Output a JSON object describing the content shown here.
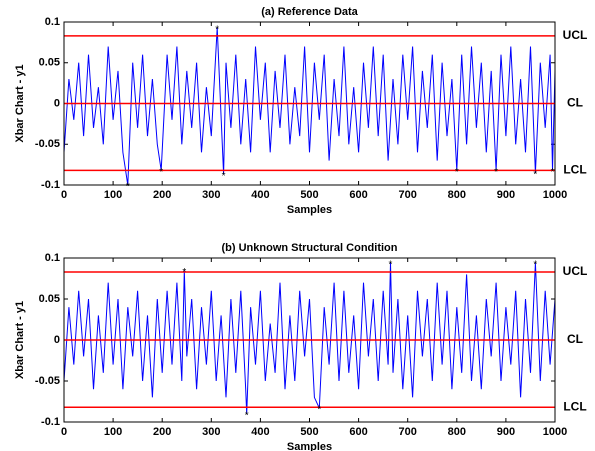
{
  "chart_data": [
    {
      "type": "line",
      "title": "(a) Reference Data",
      "xlabel": "Samples",
      "ylabel": "Xbar Chart - y1",
      "xlim": [
        0,
        1000
      ],
      "xticks": [
        0,
        100,
        200,
        300,
        400,
        500,
        600,
        700,
        800,
        900,
        1000
      ],
      "ylim": [
        -0.1,
        0.1
      ],
      "yticks": [
        -0.1,
        -0.05,
        0,
        0.05,
        0.1
      ],
      "x": [
        0,
        10,
        20,
        30,
        40,
        50,
        60,
        70,
        80,
        90,
        100,
        110,
        120,
        130,
        140,
        150,
        160,
        170,
        180,
        190,
        198,
        210,
        220,
        230,
        240,
        250,
        260,
        270,
        280,
        290,
        300,
        312,
        325,
        330,
        340,
        350,
        360,
        370,
        380,
        390,
        400,
        410,
        420,
        430,
        440,
        450,
        460,
        470,
        480,
        490,
        500,
        510,
        520,
        530,
        540,
        550,
        560,
        570,
        580,
        590,
        600,
        610,
        620,
        630,
        640,
        650,
        660,
        670,
        680,
        690,
        700,
        710,
        720,
        730,
        740,
        750,
        760,
        770,
        780,
        790,
        800,
        810,
        820,
        830,
        840,
        850,
        860,
        870,
        880,
        890,
        900,
        910,
        920,
        930,
        940,
        950,
        960,
        970,
        980,
        990,
        995,
        1000
      ],
      "series": [
        {
          "color": "#0000ff",
          "values": [
            -0.06,
            0.03,
            -0.02,
            0.05,
            -0.04,
            0.06,
            -0.03,
            0.02,
            -0.05,
            0.07,
            -0.02,
            0.04,
            -0.06,
            -0.1,
            0.05,
            -0.03,
            0.06,
            -0.04,
            0.03,
            -0.05,
            -0.082,
            0.06,
            -0.02,
            0.07,
            -0.05,
            0.04,
            -0.03,
            0.05,
            -0.06,
            0.02,
            -0.04,
            0.093,
            -0.087,
            0.05,
            -0.03,
            0.06,
            -0.05,
            0.03,
            -0.06,
            0.07,
            -0.02,
            0.05,
            -0.06,
            0.04,
            -0.03,
            0.06,
            -0.05,
            0.02,
            -0.04,
            0.07,
            -0.06,
            0.05,
            -0.02,
            0.06,
            -0.07,
            0.03,
            -0.04,
            0.07,
            -0.05,
            0.02,
            -0.06,
            0.05,
            -0.03,
            0.07,
            -0.04,
            0.06,
            -0.07,
            0.03,
            -0.05,
            0.06,
            -0.02,
            0.07,
            -0.06,
            0.04,
            -0.03,
            0.06,
            -0.07,
            0.05,
            -0.04,
            0.03,
            -0.082,
            0.06,
            -0.05,
            0.07,
            -0.03,
            0.05,
            -0.06,
            0.04,
            -0.082,
            0.06,
            -0.04,
            0.07,
            -0.05,
            0.03,
            -0.06,
            0.07,
            -0.085,
            0.05,
            -0.03,
            0.06,
            -0.082,
            0.04
          ]
        }
      ],
      "markers": {
        "color": "#000000",
        "x": [
          130,
          198,
          312,
          325,
          800,
          880,
          960,
          995
        ],
        "y": [
          -0.1,
          -0.082,
          0.093,
          -0.087,
          -0.082,
          -0.082,
          -0.085,
          -0.082
        ]
      },
      "control_limits": [
        {
          "label": "UCL",
          "value": 0.083,
          "color": "#ff0000"
        },
        {
          "label": "CL",
          "value": 0,
          "color": "#ff0000"
        },
        {
          "label": "LCL",
          "value": -0.082,
          "color": "#ff0000"
        }
      ]
    },
    {
      "type": "line",
      "title": "(b) Unknown Structural Condition",
      "xlabel": "Samples",
      "ylabel": "Xbar Chart - y1",
      "xlim": [
        0,
        1000
      ],
      "xticks": [
        0,
        100,
        200,
        300,
        400,
        500,
        600,
        700,
        800,
        900,
        1000
      ],
      "ylim": [
        -0.1,
        0.1
      ],
      "yticks": [
        -0.1,
        -0.05,
        0,
        0.05,
        0.1
      ],
      "x": [
        0,
        10,
        20,
        30,
        40,
        50,
        60,
        70,
        80,
        90,
        100,
        110,
        120,
        130,
        140,
        150,
        160,
        170,
        180,
        190,
        200,
        210,
        220,
        230,
        240,
        245,
        250,
        260,
        270,
        280,
        290,
        300,
        310,
        320,
        330,
        340,
        350,
        360,
        370,
        372,
        380,
        390,
        400,
        410,
        420,
        430,
        440,
        450,
        460,
        470,
        480,
        490,
        500,
        510,
        520,
        530,
        540,
        550,
        560,
        570,
        580,
        590,
        600,
        610,
        620,
        630,
        640,
        650,
        660,
        665,
        670,
        680,
        690,
        700,
        710,
        720,
        730,
        740,
        750,
        760,
        770,
        780,
        790,
        800,
        810,
        820,
        830,
        840,
        850,
        860,
        870,
        880,
        890,
        900,
        910,
        920,
        930,
        940,
        950,
        960,
        970,
        980,
        990,
        1000
      ],
      "series": [
        {
          "color": "#0000ff",
          "values": [
            -0.05,
            0.04,
            -0.03,
            0.06,
            -0.02,
            0.05,
            -0.06,
            0.03,
            -0.04,
            0.07,
            -0.03,
            0.05,
            -0.06,
            0.04,
            -0.02,
            0.06,
            -0.05,
            0.03,
            -0.07,
            0.05,
            -0.04,
            0.06,
            -0.03,
            0.07,
            -0.05,
            0.085,
            -0.02,
            0.05,
            -0.06,
            0.04,
            -0.03,
            0.06,
            -0.05,
            0.03,
            -0.07,
            0.05,
            -0.04,
            0.06,
            -0.06,
            -0.09,
            0.04,
            -0.03,
            0.06,
            -0.05,
            0.02,
            -0.04,
            0.07,
            -0.06,
            0.03,
            -0.05,
            0.06,
            -0.02,
            0.05,
            -0.07,
            -0.083,
            0.04,
            -0.03,
            0.07,
            -0.05,
            0.06,
            -0.04,
            0.03,
            -0.06,
            0.07,
            -0.02,
            0.05,
            -0.05,
            0.06,
            -0.03,
            0.094,
            -0.04,
            0.05,
            -0.06,
            0.03,
            -0.07,
            0.06,
            -0.02,
            0.05,
            -0.05,
            0.07,
            -0.03,
            0.06,
            -0.06,
            0.04,
            -0.04,
            0.08,
            -0.05,
            0.03,
            -0.06,
            0.05,
            -0.02,
            0.07,
            -0.05,
            0.04,
            -0.03,
            0.06,
            -0.07,
            0.05,
            -0.04,
            0.094,
            -0.05,
            0.06,
            -0.03,
            0.05
          ]
        }
      ],
      "markers": {
        "color": "#000000",
        "x": [
          245,
          372,
          520,
          665,
          960
        ],
        "y": [
          0.085,
          -0.09,
          -0.083,
          0.094,
          0.094
        ]
      },
      "control_limits": [
        {
          "label": "UCL",
          "value": 0.083,
          "color": "#ff0000"
        },
        {
          "label": "CL",
          "value": 0,
          "color": "#ff0000"
        },
        {
          "label": "LCL",
          "value": -0.082,
          "color": "#ff0000"
        }
      ]
    }
  ]
}
